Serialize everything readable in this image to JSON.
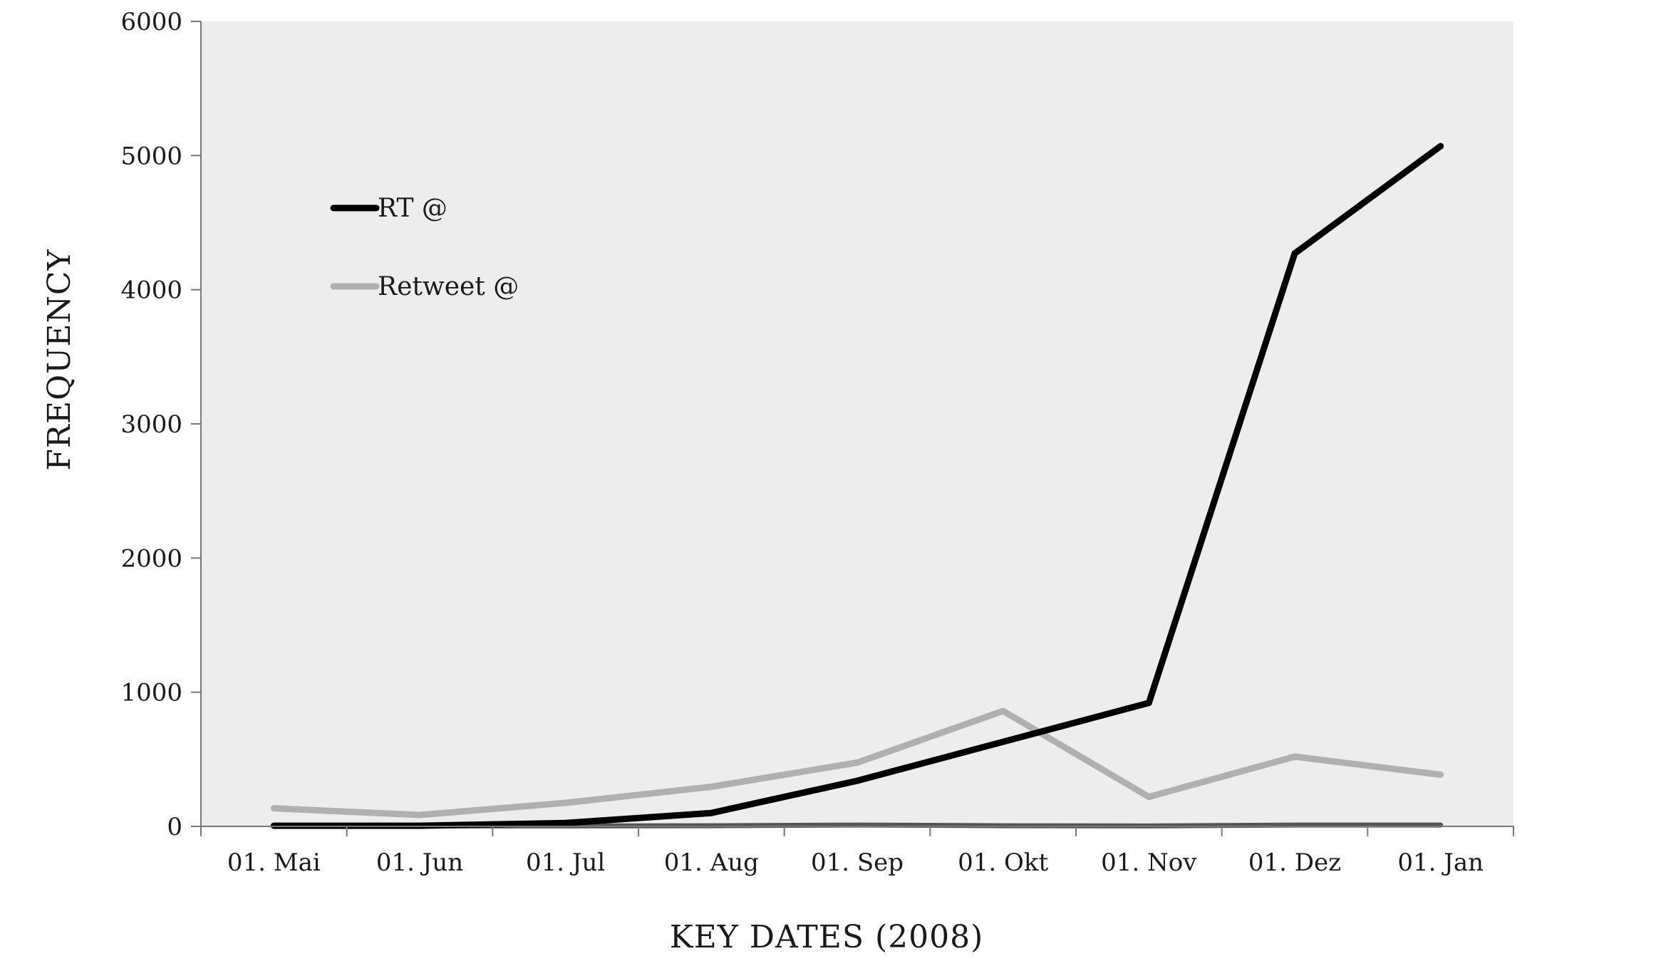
{
  "chart_data": {
    "type": "line",
    "xlabel": "KEY DATES (2008)",
    "ylabel": "FREQUENCY",
    "ylim": [
      0,
      6000
    ],
    "yticks": [
      0,
      1000,
      2000,
      3000,
      4000,
      5000,
      6000
    ],
    "categories": [
      "01. Mai",
      "01. Jun",
      "01. Jul",
      "01. Aug",
      "01. Sep",
      "01. Okt",
      "01. Nov",
      "01. Dez",
      "01. Jan"
    ],
    "grid": false,
    "legend_position": "top-left",
    "plot_background": "#ededed",
    "series": [
      {
        "name": "RT @",
        "color": "#000000",
        "values": [
          5,
          5,
          25,
          100,
          340,
          630,
          920,
          4270,
          5070
        ]
      },
      {
        "name": "Retweet @",
        "color": "#b0b0b0",
        "values": [
          135,
          85,
          175,
          295,
          475,
          860,
          220,
          520,
          385
        ]
      },
      {
        "color": "#555555",
        "values": [
          3,
          3,
          3,
          5,
          10,
          5,
          3,
          10,
          10
        ]
      }
    ]
  }
}
